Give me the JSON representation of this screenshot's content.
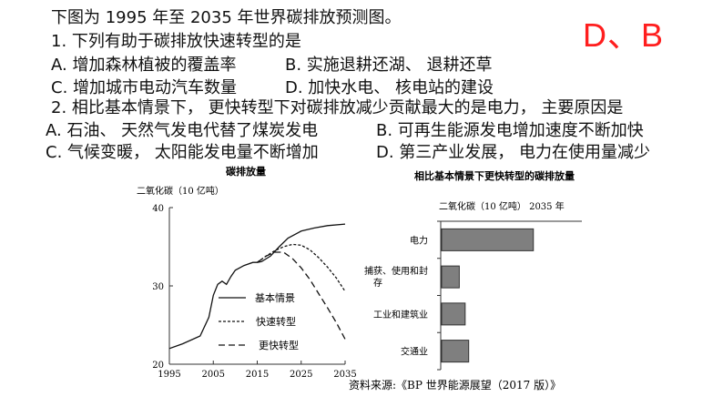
{
  "question": {
    "intro": "下图为 1995 年至 2035 年世界碳排放预测图。",
    "q1": "1. 下列有助于碳排放快速转型的是",
    "q1_a": "A. 增加森林植被的覆盖率",
    "q1_b": "B. 实施退耕还湖、 退耕还草",
    "q1_c": "C. 增加城市电动汽车数量",
    "q1_d": "D. 加快水电、 核电站的建设",
    "q2": "2. 相比基本情景下， 更快转型下对碳排放减少贡献最大的是电力， 主要原因是",
    "q2_a": "A. 石油、 天然气发电代替了煤炭发电",
    "q2_b": "B. 可再生能源发电增加速度不断加快",
    "q2_c": "C. 气候变暖， 太阳能发电量不断增加",
    "q2_d": "D. 第三产业发展， 电力在使用量减少",
    "answer": "D、B"
  },
  "source": "资料来源:《BP 世界能源展望（2017 版）》",
  "chart_data": [
    {
      "type": "line",
      "title": "碳排放量",
      "ylabel": "二氧化碳（10 亿吨）",
      "xlim": [
        1995,
        2035
      ],
      "ylim": [
        20,
        40
      ],
      "xticks": [
        "1995",
        "2005",
        "2015",
        "2025",
        "2035"
      ],
      "yticks": [
        "20",
        "30",
        "40"
      ],
      "series": [
        {
          "name": "基本情景",
          "style": "solid",
          "x": [
            1995,
            1998,
            2002,
            2004,
            2005,
            2006,
            2007,
            2008,
            2009,
            2010,
            2012,
            2014,
            2015,
            2016,
            2018,
            2020,
            2022,
            2025,
            2028,
            2031,
            2035
          ],
          "y": [
            22.0,
            22.6,
            23.6,
            26.0,
            28.8,
            30.2,
            30.6,
            30.2,
            31.2,
            32.0,
            32.6,
            33.0,
            33.0,
            33.1,
            33.8,
            35.0,
            36.1,
            37.0,
            37.4,
            37.7,
            37.9
          ]
        },
        {
          "name": "快速转型",
          "style": "dashed",
          "x": [
            2015,
            2017,
            2019,
            2021,
            2023,
            2025,
            2027,
            2029,
            2031,
            2033,
            2035
          ],
          "y": [
            33.0,
            33.8,
            34.5,
            35.0,
            35.3,
            35.2,
            34.6,
            33.6,
            32.4,
            31.0,
            29.3
          ]
        },
        {
          "name": "更快转型",
          "style": "longdash",
          "x": [
            2015,
            2017,
            2019,
            2021,
            2023,
            2025,
            2027,
            2029,
            2031,
            2033,
            2035
          ],
          "y": [
            33.0,
            33.8,
            34.3,
            34.3,
            33.5,
            32.3,
            30.8,
            29.0,
            27.2,
            25.3,
            23.2
          ]
        }
      ],
      "legend": "center-right"
    },
    {
      "type": "bar",
      "orientation": "horizontal",
      "title": "相比基本情景下更快转型的碳排放量",
      "xlabel": "二氧化碳（10 亿吨） 2035 年",
      "categories": [
        "电力",
        "捕获、使用和封存",
        "工业和建筑业",
        "交通业"
      ],
      "values": [
        7.8,
        1.5,
        2.0,
        2.3
      ],
      "xlim": [
        0,
        12
      ],
      "bar_color": "#7f7f7f"
    }
  ]
}
